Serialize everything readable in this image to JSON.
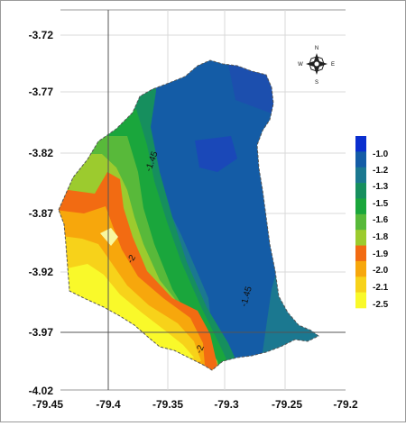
{
  "map": {
    "y_ticks": [
      "-3.72",
      "-3.77",
      "-3.82",
      "-3.87",
      "-3.92",
      "-3.97",
      "-4.02"
    ],
    "x_ticks": [
      "-79.45",
      "-79.4",
      "-79.35",
      "-79.3",
      "-79.25",
      "-79.2"
    ],
    "contour_labels": [
      "-1.45",
      "-2",
      "-1.45",
      "-2"
    ],
    "compass": {
      "n": "N",
      "s": "S",
      "e": "E",
      "w": "W"
    }
  },
  "legend": {
    "colors": [
      "#0a2fcf",
      "#145ca6",
      "#1b7890",
      "#168f5e",
      "#1aa63c",
      "#58b93a",
      "#9ccb2e",
      "#f26b12",
      "#f7a70c",
      "#f7d21a",
      "#f9f92a"
    ],
    "labels": [
      "-1.0",
      "-1.2",
      "-1.3",
      "-1.5",
      "-1.6",
      "-1.8",
      "-1.9",
      "-2.0",
      "-2.1",
      "-2.5"
    ]
  }
}
